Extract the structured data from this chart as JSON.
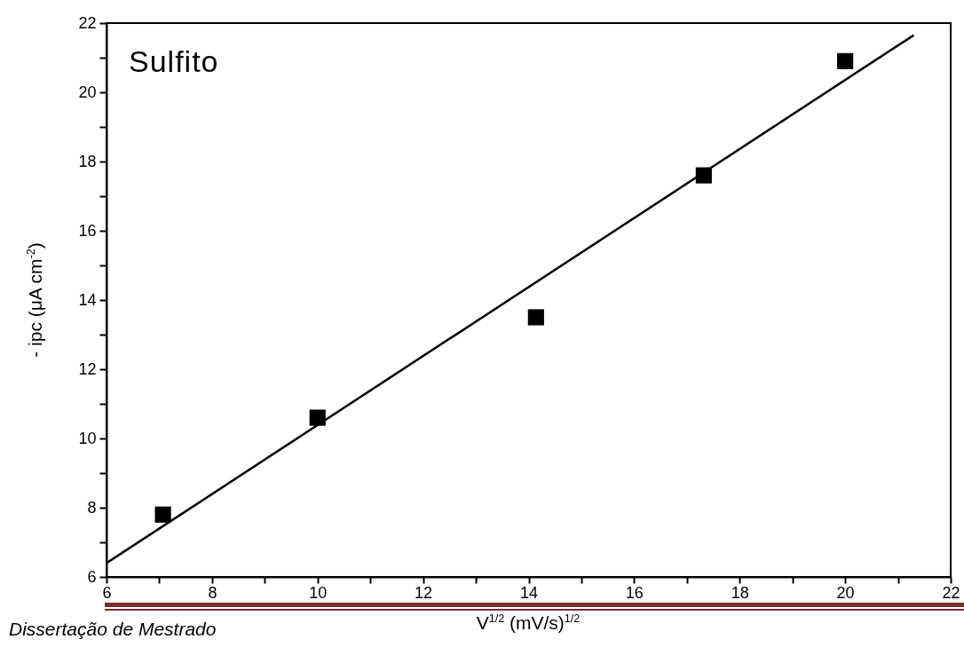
{
  "chart_data": {
    "type": "scatter",
    "title": "Sulfito",
    "xlabel": "V$^{1/2}$ (mV/s)$^{1/2}$",
    "ylabel": "- ipc (μA cm$^{-2}$)",
    "annotations": [
      "Dissertação de Mestrado"
    ],
    "x": [
      7.07,
      10,
      14.14,
      17.32,
      20
    ],
    "series": [
      {
        "type": "scatter",
        "color": "#000000",
        "marker": "square",
        "values": [
          7.8,
          10.6,
          13.5,
          17.6,
          20.9
        ]
      },
      {
        "type": "line",
        "x": [
          6,
          21.3
        ],
        "values": [
          6.4,
          21.65
        ],
        "color": "#000000",
        "line_style": "solid",
        "marker": "none"
      }
    ],
    "xlim": [
      6,
      22
    ],
    "ylim": [
      6,
      22
    ],
    "xticks": [
      6,
      {
        "value": 7,
        "label": null
      },
      8,
      {
        "value": 9,
        "label": null
      },
      10,
      {
        "value": 11,
        "label": null
      },
      12,
      {
        "value": 13,
        "label": null
      },
      14,
      {
        "value": 15,
        "label": null
      },
      16,
      {
        "value": 17,
        "label": null
      },
      18,
      {
        "value": 19,
        "label": null
      },
      20,
      {
        "value": 21,
        "label": null
      },
      22
    ],
    "yticks": [
      6,
      {
        "value": 7,
        "label": null
      },
      8,
      {
        "value": 9,
        "label": null
      },
      10,
      {
        "value": 11,
        "label": null
      },
      12,
      {
        "value": 13,
        "label": null
      },
      14,
      {
        "value": 15,
        "label": null
      },
      16,
      {
        "value": 17,
        "label": null
      },
      18,
      {
        "value": 19,
        "label": null
      },
      20,
      {
        "value": 21,
        "label": null
      },
      22
    ]
  }
}
